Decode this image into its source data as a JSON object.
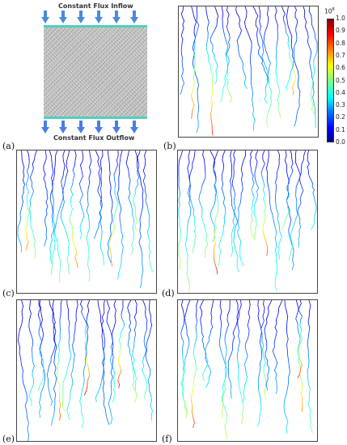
{
  "panels": [
    {
      "id": "a",
      "label": "(a)"
    },
    {
      "id": "b",
      "label": "(b)"
    },
    {
      "id": "c",
      "label": "(c)"
    },
    {
      "id": "d",
      "label": "(d)"
    },
    {
      "id": "e",
      "label": "(e)"
    },
    {
      "id": "f",
      "label": "(f)"
    }
  ],
  "schematic": {
    "inflow_label": "Constant Flux Inflow",
    "outflow_label": "Constant Flux Outflow"
  },
  "colorbar": {
    "exponent": "10",
    "exponent_power": "8",
    "ticks": [
      "1.0",
      "0.9",
      "0.8",
      "0.7",
      "0.6",
      "0.5",
      "0.4",
      "0.3",
      "0.2",
      "0.1",
      "0.0"
    ],
    "colormap": "jet"
  }
}
